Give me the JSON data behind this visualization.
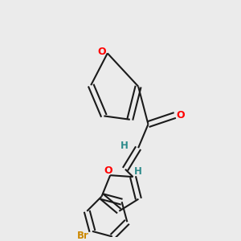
{
  "background_color": "#ebebeb",
  "bond_color": "#1a1a1a",
  "oxygen_color": "#ff0000",
  "bromine_color": "#cc8800",
  "hydrogen_color": "#2d8b8b",
  "line_width": 1.5,
  "dbo": 0.012,
  "fig_width": 3.0,
  "fig_height": 3.0,
  "dpi": 100,
  "xlim": [
    0.0,
    1.0
  ],
  "ylim": [
    0.0,
    1.0
  ]
}
